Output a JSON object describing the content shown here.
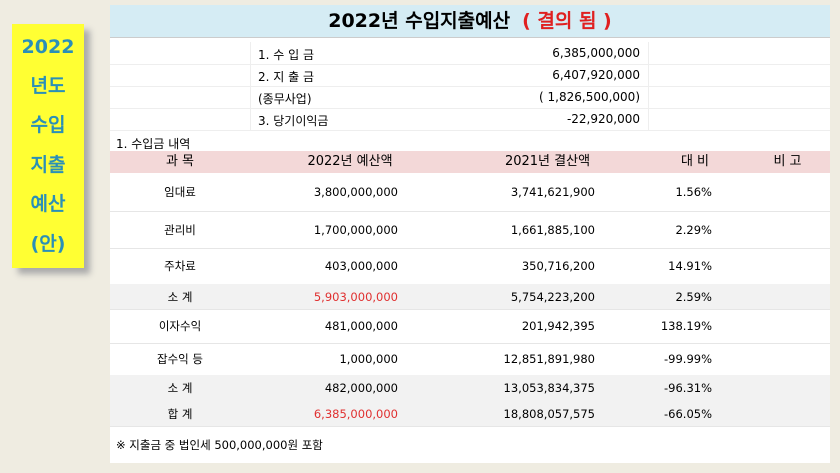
{
  "side_note": {
    "lines": [
      "2022",
      "년도",
      "수입",
      "지출",
      "예산",
      "(안)"
    ]
  },
  "header": {
    "title": "2022년 수입지출예산",
    "status": "( 결의 됨 )"
  },
  "summary": [
    [
      "1. 수 입 금",
      "6,385,000,000"
    ],
    [
      "2. 지 출 금",
      "6,407,920,000"
    ],
    [
      "(종무사업)",
      "( 1,826,500,000)"
    ],
    [
      "3. 당기이익금",
      "-22,920,000"
    ]
  ],
  "section": "1. 수입금 내역",
  "table": {
    "columns": [
      "과 목",
      "2022년 예산액",
      "2021년 결산액",
      "대 비",
      "비 고"
    ],
    "rows": [
      [
        "임대료",
        "3,800,000,000",
        "3,741,621,900",
        "1.56%"
      ],
      [
        "관리비",
        "1,700,000,000",
        "1,661,885,100",
        "2.29%"
      ],
      [
        "주차료",
        "403,000,000",
        "350,716,200",
        "14.91%"
      ],
      [
        "소 계",
        "5,903,000,000",
        "5,754,223,200",
        "2.59%"
      ],
      [
        "이자수익",
        "481,000,000",
        "201,942,395",
        "138.19%"
      ],
      [
        "잡수익 등",
        "1,000,000",
        "12,851,891,980",
        "-99.99%"
      ],
      [
        "소 계",
        "482,000,000",
        "13,053,834,375",
        "-96.31%"
      ],
      [
        "합 계",
        "6,385,000,000",
        "18,808,057,575",
        "-66.05%"
      ]
    ]
  },
  "footnote": "※ 지출금 중 법인세 500,000,000원 포함"
}
